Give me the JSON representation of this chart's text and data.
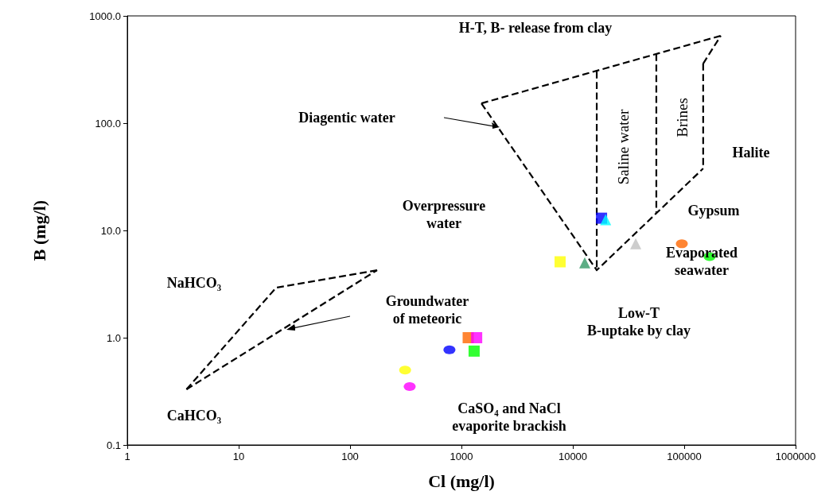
{
  "chart_data": {
    "type": "scatter",
    "xlabel": "Cl (mg/l)",
    "ylabel": "B (mg/l)",
    "log": "xy",
    "grid": false,
    "xlim": [
      1,
      1000000
    ],
    "xticks": [
      1,
      10,
      100,
      1000,
      10000,
      100000,
      1000000
    ],
    "ylim": [
      0.1,
      1000
    ],
    "yticks": [
      {
        "value": 0.1,
        "label": "0.1"
      },
      {
        "value": 1,
        "label": "1.0"
      },
      {
        "value": 10,
        "label": "10.0"
      },
      {
        "value": 100,
        "label": "100.0"
      },
      {
        "value": 1000,
        "label": "1000.0"
      }
    ],
    "series": [
      {
        "type": "line",
        "color": "#000000",
        "line_style": "dashed",
        "marker": "none",
        "x": [
          3.4,
          21.7,
          175
        ],
        "values": [
          0.33,
          2.93,
          4.26
        ]
      },
      {
        "type": "line",
        "color": "#000000",
        "line_style": "dashed",
        "marker": "none",
        "x": [
          3.4,
          175
        ],
        "values": [
          0.33,
          4.26
        ]
      },
      {
        "type": "line",
        "color": "#000000",
        "line_style": "dashed",
        "marker": "none",
        "x": [
          1510,
          213000
        ],
        "values": [
          153,
          653
        ]
      },
      {
        "type": "line",
        "color": "#000000",
        "line_style": "dashed",
        "marker": "none",
        "x": [
          1510,
          16400,
          148000
        ],
        "values": [
          153,
          4.26,
          37.8
        ]
      },
      {
        "type": "line",
        "color": "#000000",
        "line_style": "dashed",
        "marker": "none",
        "x": [
          148000,
          213000
        ],
        "values": [
          359,
          653
        ]
      },
      {
        "type": "line",
        "color": "#000000",
        "line_style": "dashed",
        "marker": "none",
        "x": [
          148000,
          148000
        ],
        "values": [
          359,
          37.8
        ]
      },
      {
        "type": "line",
        "color": "#000000",
        "line_style": "dashed",
        "marker": "none",
        "x": [
          16400,
          16400
        ],
        "values": [
          303,
          4.26
        ]
      },
      {
        "type": "line",
        "color": "#000000",
        "line_style": "dashed",
        "marker": "none",
        "x": [
          56200,
          56200
        ],
        "values": [
          441,
          14.6
        ]
      },
      {
        "color": "#ffff00",
        "marker": "circle",
        "x": [
          312
        ],
        "values": [
          0.5
        ]
      },
      {
        "color": "#ff00ff",
        "marker": "circle",
        "x": [
          343
        ],
        "values": [
          0.35
        ]
      },
      {
        "color": "#0000ff",
        "marker": "circle",
        "x": [
          780
        ],
        "values": [
          0.77
        ]
      },
      {
        "color": "#ff6600",
        "marker": "square",
        "x": [
          1150
        ],
        "values": [
          1.0
        ]
      },
      {
        "color": "#ff00ff",
        "marker": "square",
        "x": [
          1370
        ],
        "values": [
          1.0
        ]
      },
      {
        "color": "#00ff00",
        "marker": "square",
        "x": [
          1300
        ],
        "values": [
          0.75
        ]
      },
      {
        "color": "#ffff00",
        "marker": "square",
        "x": [
          7690
        ],
        "values": [
          5.1
        ]
      },
      {
        "color": "#339966",
        "marker": "triangle",
        "x": [
          12800
        ],
        "values": [
          5.0
        ]
      },
      {
        "color": "#0000ff",
        "marker": "square",
        "x": [
          18100
        ],
        "values": [
          13
        ]
      },
      {
        "color": "#00ffff",
        "marker": "triangle",
        "x": [
          19700
        ],
        "values": [
          12.6
        ]
      },
      {
        "color": "#c0c0c0",
        "marker": "triangle",
        "x": [
          36700
        ],
        "values": [
          7.5
        ]
      },
      {
        "color": "#ff6600",
        "marker": "circle",
        "x": [
          95200
        ],
        "values": [
          7.5
        ]
      },
      {
        "color": "#00ff00",
        "marker": "circle",
        "x": [
          169000
        ],
        "values": [
          5.7
        ]
      }
    ],
    "annotations": [
      "H-T, B- release from clay",
      "Diagentic water",
      "Overpressure\nwater",
      "Saline water",
      "Brines",
      "Halite",
      "Gypsum",
      "Evaporated\nseawater",
      "NaHCO₃",
      "Groundwater\nof meteoric",
      "Low-T\nB-uptake by clay",
      "CaHCO₃",
      "CaSO₄ and NaCl\nevaporite brackish"
    ]
  }
}
